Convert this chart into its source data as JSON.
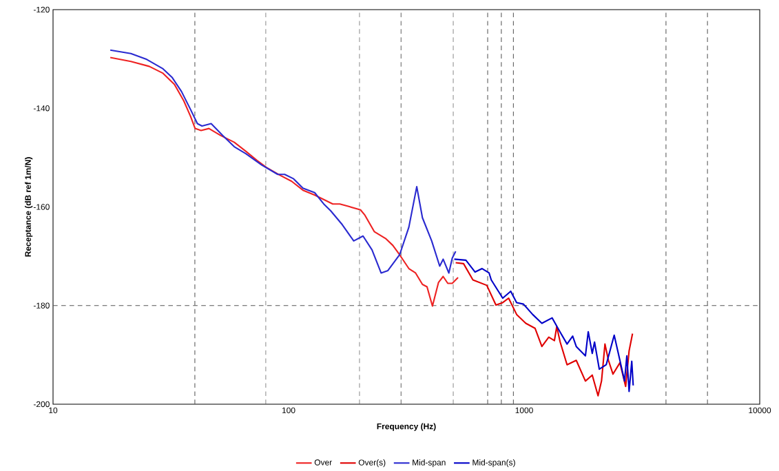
{
  "chart_data": {
    "type": "line",
    "xlabel": "Frequency (Hz)",
    "ylabel": "Receptance (dB ref 1m/N)",
    "log": "x",
    "grid": false,
    "legend": "bottom",
    "line_style": "solid",
    "marker": "none",
    "xlim": [
      10,
      10000
    ],
    "xticks": [
      10,
      100,
      1000,
      10000
    ],
    "ylim": [
      -200,
      -120
    ],
    "yticks": [
      -200,
      -180,
      -160,
      -140,
      -120
    ],
    "series": [
      {
        "name": "Over",
        "color": "#ee2222",
        "x": [
          17.5,
          21.4,
          25.6,
          29.3,
          32.8,
          35.9,
          38.4,
          40.1,
          42.5,
          45.9,
          51.4,
          58.8,
          65.8,
          73.5,
          80.5,
          92.1,
          103,
          115,
          129,
          141,
          154,
          165,
          180,
          202,
          211,
          231,
          258,
          277,
          296,
          324,
          346,
          370,
          387,
          408,
          433,
          453,
          474,
          495,
          524
        ],
        "values": [
          -129.7,
          -130.5,
          -131.5,
          -132.9,
          -135.2,
          -138.5,
          -141.7,
          -144.1,
          -144.5,
          -144.1,
          -145.5,
          -146.9,
          -148.7,
          -150.6,
          -152.0,
          -153.6,
          -154.8,
          -156.6,
          -157.6,
          -158.5,
          -159.4,
          -159.4,
          -159.9,
          -160.6,
          -161.7,
          -165.0,
          -166.4,
          -167.8,
          -169.7,
          -172.5,
          -173.4,
          -175.7,
          -176.2,
          -180.1,
          -175.3,
          -174.1,
          -175.5,
          -175.5,
          -174.3
        ]
      },
      {
        "name": "Over(s)",
        "color": "#e00000",
        "x": [
          512,
          553,
          606,
          694,
          759,
          811,
          859,
          929,
          1016,
          1112,
          1189,
          1272,
          1344,
          1375,
          1422,
          1521,
          1664,
          1820,
          1946,
          2059,
          2130,
          2203,
          2279,
          2383,
          2549,
          2697,
          2789,
          2884
        ],
        "values": [
          -171.3,
          -171.5,
          -174.8,
          -175.9,
          -179.9,
          -179.4,
          -178.5,
          -181.8,
          -183.6,
          -184.6,
          -188.3,
          -186.4,
          -187.1,
          -184.3,
          -187.4,
          -192.0,
          -191.1,
          -195.3,
          -194.1,
          -198.3,
          -195.3,
          -187.8,
          -191.1,
          -193.9,
          -191.6,
          -196.4,
          -189.2,
          -185.7
        ]
      },
      {
        "name": "Mid-span",
        "color": "#2a2ad0",
        "x": [
          17.5,
          21.4,
          25.0,
          29.3,
          32.1,
          35.1,
          38.4,
          41.0,
          42.9,
          46.9,
          52.5,
          58.8,
          65.8,
          76.9,
          89.9,
          96.2,
          105,
          115,
          129,
          141,
          151,
          169,
          189,
          207,
          226,
          247,
          264,
          296,
          324,
          350,
          370,
          405,
          438,
          453,
          479,
          495,
          512
        ],
        "values": [
          -128.2,
          -128.9,
          -130.1,
          -132.0,
          -133.8,
          -136.6,
          -140.3,
          -143.1,
          -143.6,
          -143.1,
          -145.5,
          -147.8,
          -149.2,
          -151.5,
          -153.4,
          -153.4,
          -154.3,
          -156.2,
          -157.1,
          -159.4,
          -160.8,
          -163.6,
          -166.9,
          -165.9,
          -168.7,
          -173.4,
          -172.9,
          -169.7,
          -164.1,
          -155.9,
          -162.2,
          -166.9,
          -172.0,
          -170.6,
          -173.4,
          -170.4,
          -169.0
        ]
      },
      {
        "name": "Mid-span(s)",
        "color": "#0000c8",
        "x": [
          505,
          566,
          619,
          663,
          710,
          725,
          811,
          877,
          929,
          993,
          1086,
          1189,
          1315,
          1406,
          1521,
          1607,
          1664,
          1820,
          1871,
          1946,
          1990,
          2084,
          2230,
          2411,
          2549,
          2667,
          2728,
          2789,
          2863,
          2903
        ],
        "values": [
          -170.6,
          -170.8,
          -173.2,
          -172.5,
          -173.4,
          -174.8,
          -178.5,
          -177.1,
          -179.4,
          -179.7,
          -181.8,
          -183.6,
          -182.5,
          -185.0,
          -187.8,
          -186.2,
          -188.3,
          -190.2,
          -185.3,
          -189.7,
          -187.4,
          -192.9,
          -192.0,
          -186.0,
          -191.1,
          -195.3,
          -190.2,
          -197.4,
          -191.3,
          -196.2
        ]
      }
    ],
    "ref_lines": [
      {
        "axis": "x",
        "value": 40,
        "color": "#555555",
        "line_style": "dashed"
      },
      {
        "axis": "x",
        "value": 80,
        "color": "#555555",
        "line_style": "dashed"
      },
      {
        "axis": "x",
        "value": 200,
        "color": "#555555",
        "line_style": "dashed"
      },
      {
        "axis": "x",
        "value": 300,
        "color": "#555555",
        "line_style": "dashed"
      },
      {
        "axis": "x",
        "value": 500,
        "color": "#555555",
        "line_style": "dashed"
      },
      {
        "axis": "x",
        "value": 700,
        "color": "#555555",
        "line_style": "dashed"
      },
      {
        "axis": "x",
        "value": 800,
        "color": "#555555",
        "line_style": "dashed"
      },
      {
        "axis": "x",
        "value": 900,
        "color": "#555555",
        "line_style": "dashed"
      },
      {
        "axis": "x",
        "value": 4000,
        "color": "#555555",
        "line_style": "dashed"
      },
      {
        "axis": "x",
        "value": 6000,
        "color": "#555555",
        "line_style": "dashed"
      },
      {
        "axis": "y",
        "value": -180,
        "color": "#555555",
        "line_style": "dashed"
      }
    ]
  }
}
